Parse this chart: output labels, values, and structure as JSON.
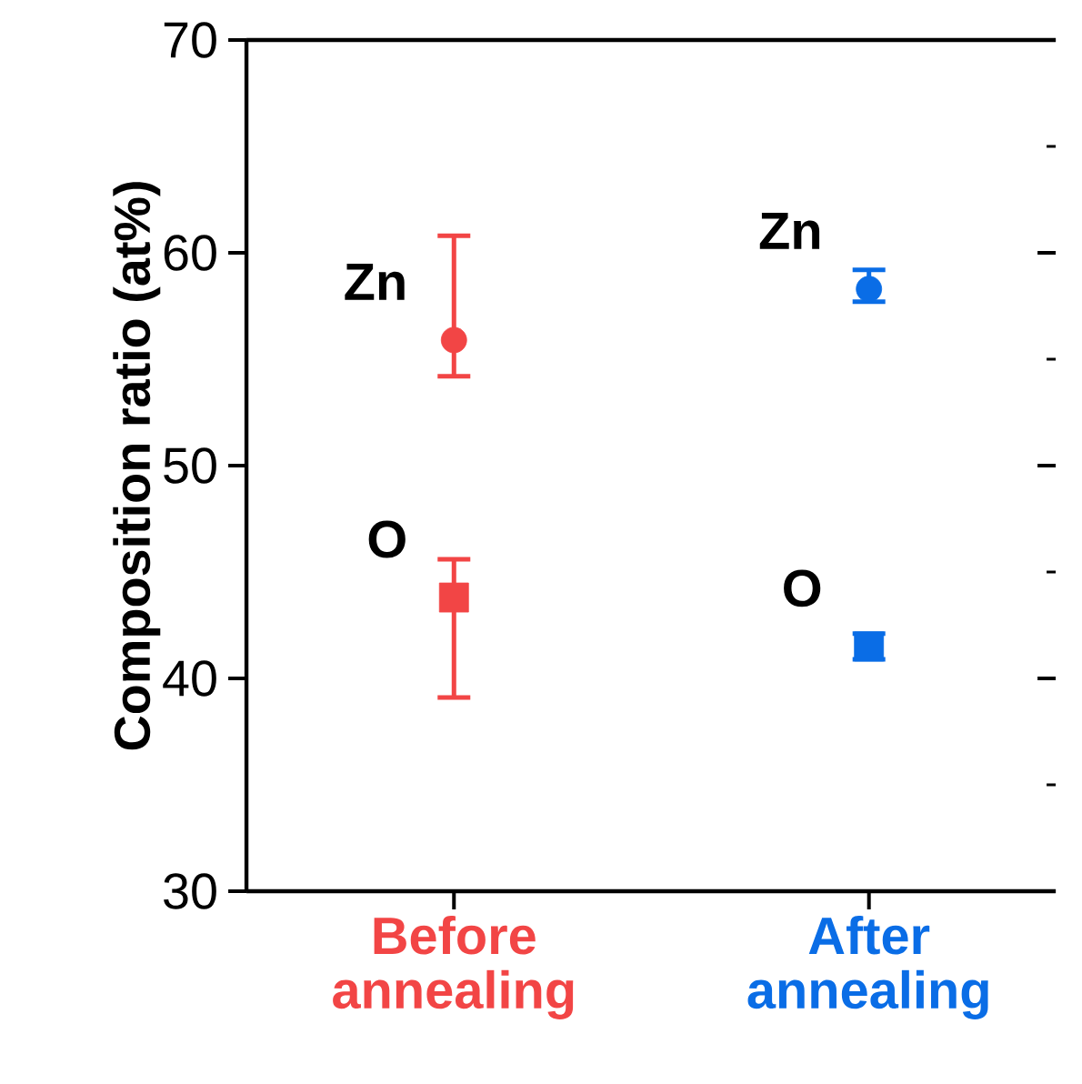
{
  "chart_data": {
    "type": "scatter",
    "ylabel": "Composition ratio (at%)",
    "categories": [
      "Before annealing",
      "After annealing"
    ],
    "ylim": [
      30,
      70
    ],
    "yticks": [
      30,
      40,
      50,
      60,
      70
    ],
    "series": [
      {
        "name": "Zn",
        "marker": "circle",
        "colors": [
          "#f24545",
          "#0a6de6"
        ],
        "values": [
          55.9,
          58.3
        ],
        "errors": [
          [
            54.2,
            60.8
          ],
          [
            57.7,
            59.2
          ]
        ]
      },
      {
        "name": "O",
        "marker": "square",
        "colors": [
          "#f24545",
          "#0a6de6"
        ],
        "values": [
          43.8,
          41.5
        ],
        "errors": [
          [
            39.1,
            45.6
          ],
          [
            40.9,
            42.1
          ]
        ]
      }
    ]
  }
}
